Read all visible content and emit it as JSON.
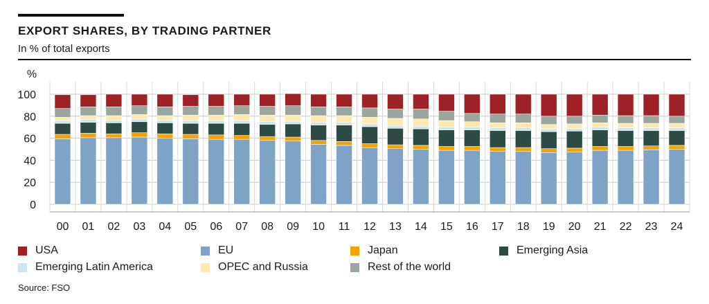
{
  "header": {
    "title": "EXPORT SHARES, BY TRADING PARTNER",
    "subtitle": "In % of total exports"
  },
  "source": "Source: FSO",
  "chart_data": {
    "type": "bar",
    "stacked": true,
    "unit_label": "%",
    "ylim": [
      0,
      100
    ],
    "yticks": [
      0,
      20,
      40,
      60,
      80,
      100
    ],
    "grid": true,
    "legend_position": "bottom",
    "categories": [
      "00",
      "01",
      "02",
      "03",
      "04",
      "05",
      "06",
      "07",
      "08",
      "09",
      "10",
      "11",
      "12",
      "13",
      "14",
      "15",
      "16",
      "17",
      "18",
      "19",
      "20",
      "21",
      "22",
      "23",
      "24"
    ],
    "series": [
      {
        "name": "EU",
        "color": "#7ea3c6",
        "values": [
          59.5,
          60.5,
          60.5,
          61,
          60,
          59.5,
          59,
          59,
          58,
          57.5,
          54.5,
          53.5,
          51.5,
          50.5,
          50,
          49,
          49,
          48,
          48,
          47,
          47.5,
          49,
          49,
          49.5,
          50
        ]
      },
      {
        "name": "Japan",
        "color": "#f2a300",
        "values": [
          4,
          4,
          3.5,
          4,
          4,
          4,
          4,
          3.5,
          3.5,
          3.5,
          3.5,
          3.5,
          3.5,
          3.5,
          3.5,
          3.5,
          3.5,
          3.5,
          3.5,
          3.5,
          3.5,
          3.5,
          3.5,
          3.5,
          3.5
        ]
      },
      {
        "name": "Emerging Asia",
        "color": "#2e4a44",
        "values": [
          10,
          10,
          10,
          10,
          10,
          10,
          10.5,
          11,
          11,
          12,
          14,
          15,
          15.5,
          15,
          15,
          15,
          15,
          15.5,
          15.5,
          15.5,
          15.5,
          15,
          14.5,
          14,
          13.5
        ]
      },
      {
        "name": "Emerging Latin America",
        "color": "#cde6ed",
        "values": [
          2.5,
          2.5,
          2.5,
          2.5,
          2.5,
          2.5,
          2.5,
          2.5,
          2.5,
          2.5,
          2.5,
          2.5,
          2.5,
          2.5,
          2.5,
          2.5,
          2.5,
          2.5,
          2.5,
          2.5,
          2.5,
          2.5,
          2.5,
          2.5,
          2.5
        ]
      },
      {
        "name": "OPEC and Russia",
        "color": "#fde7b3",
        "values": [
          3,
          3.5,
          4,
          4,
          4,
          5,
          5,
          5.5,
          6,
          5.5,
          6,
          6,
          6,
          6.5,
          6.5,
          6,
          5,
          4.5,
          4.5,
          4,
          4,
          4,
          4,
          4,
          4
        ]
      },
      {
        "name": "Rest of the world",
        "color": "#9aa59d",
        "values": [
          8,
          8,
          8,
          8,
          8,
          8,
          8,
          8,
          8,
          8.5,
          8,
          8,
          8.5,
          8.5,
          9,
          8.5,
          7.5,
          8,
          8,
          7.5,
          7,
          7,
          7,
          7,
          6.5
        ]
      },
      {
        "name": "USA",
        "color": "#9e2127",
        "values": [
          12.5,
          11,
          11.5,
          10.5,
          11.5,
          10.5,
          11,
          10.5,
          11,
          11,
          11.5,
          11.5,
          12.5,
          13.5,
          13.5,
          15.5,
          17.5,
          18,
          18,
          20,
          20,
          19,
          19.5,
          19.5,
          20
        ]
      }
    ]
  },
  "legend": [
    {
      "label": "USA",
      "color": "#9e2127"
    },
    {
      "label": "EU",
      "color": "#7ea3c6"
    },
    {
      "label": "Japan",
      "color": "#f2a300"
    },
    {
      "label": "Emerging Asia",
      "color": "#2e4a44"
    },
    {
      "label": "Emerging Latin America",
      "color": "#cde6ed"
    },
    {
      "label": "OPEC and Russia",
      "color": "#fde7b3"
    },
    {
      "label": "Rest of the world",
      "color": "#9aa59d"
    }
  ]
}
